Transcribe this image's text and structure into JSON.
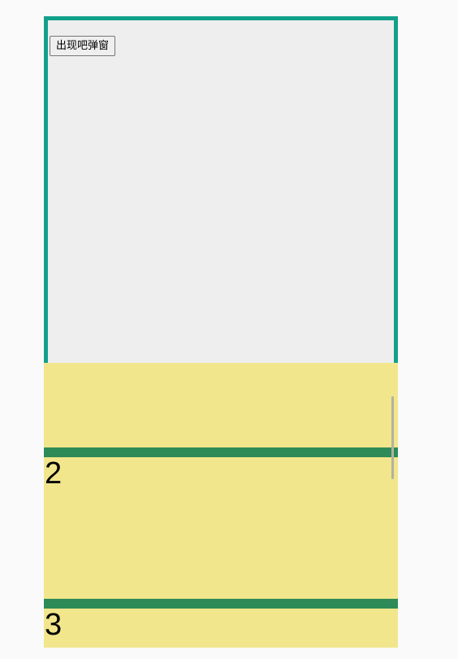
{
  "main": {
    "open_popup_button_label": "出现吧弹窗"
  },
  "popup": {
    "items": [
      {
        "label": ""
      },
      {
        "label": "2"
      },
      {
        "label": "3"
      }
    ]
  },
  "colors": {
    "frame_border": "#12a08a",
    "frame_background": "#eeeeee",
    "popup_background": "#f1e68c",
    "divider": "#2e8b57"
  }
}
